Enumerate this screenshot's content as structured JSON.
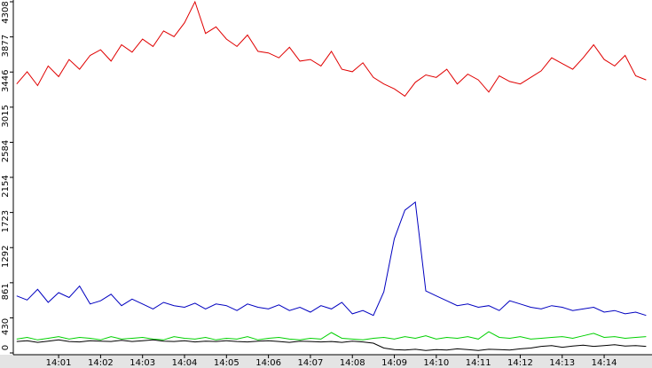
{
  "chart_data": {
    "type": "line",
    "x": [
      840,
      840.25,
      840.5,
      840.75,
      841,
      841.25,
      841.5,
      841.75,
      842,
      842.25,
      842.5,
      842.75,
      843,
      843.25,
      843.5,
      843.75,
      844,
      844.25,
      844.5,
      844.75,
      845,
      845.25,
      845.5,
      845.75,
      846,
      846.25,
      846.5,
      846.75,
      847,
      847.25,
      847.5,
      847.75,
      848,
      848.25,
      848.5,
      848.75,
      849,
      849.25,
      849.5,
      849.75,
      850,
      850.25,
      850.5,
      850.75,
      851,
      851.25,
      851.5,
      851.75,
      852,
      852.25,
      852.5,
      852.75,
      853,
      853.25,
      853.5,
      853.75,
      854,
      854.25,
      854.5,
      854.75,
      855
    ],
    "series": [
      {
        "color": "#e00000",
        "values": [
          3300,
          3450,
          3280,
          3520,
          3390,
          3600,
          3480,
          3650,
          3720,
          3580,
          3780,
          3690,
          3850,
          3760,
          3950,
          3880,
          4050,
          4308,
          3920,
          4000,
          3850,
          3760,
          3900,
          3700,
          3680,
          3620,
          3750,
          3580,
          3600,
          3520,
          3700,
          3480,
          3450,
          3560,
          3380,
          3300,
          3240,
          3150,
          3320,
          3410,
          3380,
          3480,
          3300,
          3420,
          3350,
          3200,
          3400,
          3330,
          3300,
          3380,
          3460,
          3620,
          3550,
          3480,
          3620,
          3780,
          3600,
          3520,
          3650,
          3400,
          3350
        ]
      },
      {
        "color": "#0000c0",
        "values": [
          700,
          650,
          780,
          620,
          740,
          680,
          820,
          600,
          640,
          720,
          580,
          660,
          600,
          540,
          620,
          580,
          560,
          610,
          540,
          600,
          580,
          520,
          600,
          560,
          540,
          590,
          520,
          560,
          500,
          580,
          540,
          620,
          480,
          520,
          460,
          750,
          1400,
          1750,
          1850,
          760,
          700,
          640,
          580,
          600,
          560,
          580,
          520,
          640,
          600,
          560,
          540,
          580,
          560,
          520,
          540,
          560,
          500,
          520,
          480,
          500,
          460
        ]
      },
      {
        "color": "#00d000",
        "values": [
          170,
          190,
          160,
          180,
          200,
          170,
          190,
          180,
          160,
          200,
          170,
          180,
          190,
          170,
          160,
          200,
          180,
          170,
          190,
          160,
          180,
          170,
          200,
          160,
          180,
          190,
          170,
          160,
          180,
          170,
          250,
          180,
          170,
          160,
          180,
          190,
          170,
          200,
          180,
          210,
          170,
          190,
          180,
          200,
          170,
          260,
          190,
          180,
          200,
          170,
          180,
          190,
          200,
          180,
          210,
          240,
          190,
          200,
          180,
          190,
          200
        ]
      },
      {
        "color": "#000000",
        "values": [
          140,
          150,
          130,
          145,
          160,
          140,
          135,
          150,
          145,
          140,
          155,
          140,
          150,
          160,
          145,
          140,
          150,
          135,
          145,
          140,
          150,
          140,
          135,
          145,
          150,
          140,
          130,
          145,
          140,
          135,
          140,
          130,
          145,
          135,
          120,
          60,
          40,
          35,
          45,
          30,
          40,
          35,
          50,
          40,
          30,
          45,
          40,
          35,
          50,
          60,
          80,
          90,
          70,
          85,
          95,
          80,
          90,
          100,
          85,
          90,
          80
        ]
      }
    ],
    "xlim": [
      839.92,
      855.14
    ],
    "xticks": [
      {
        "value": 841,
        "label": "14:01"
      },
      {
        "value": 842,
        "label": "14:02"
      },
      {
        "value": 843,
        "label": "14:03"
      },
      {
        "value": 844,
        "label": "14:04"
      },
      {
        "value": 845,
        "label": "14:05"
      },
      {
        "value": 846,
        "label": "14:06"
      },
      {
        "value": 847,
        "label": "14:07"
      },
      {
        "value": 848,
        "label": "14:08"
      },
      {
        "value": 849,
        "label": "14:09"
      },
      {
        "value": 850,
        "label": "14:10"
      },
      {
        "value": 851,
        "label": "14:11"
      },
      {
        "value": 852,
        "label": "14:12"
      },
      {
        "value": 853,
        "label": "14:13"
      },
      {
        "value": 854,
        "label": "14:14"
      }
    ],
    "ylim": [
      0,
      4308
    ],
    "yticks": [
      0,
      430,
      861,
      1292,
      1723,
      2154,
      2584,
      3015,
      3446,
      3877,
      4308
    ]
  }
}
